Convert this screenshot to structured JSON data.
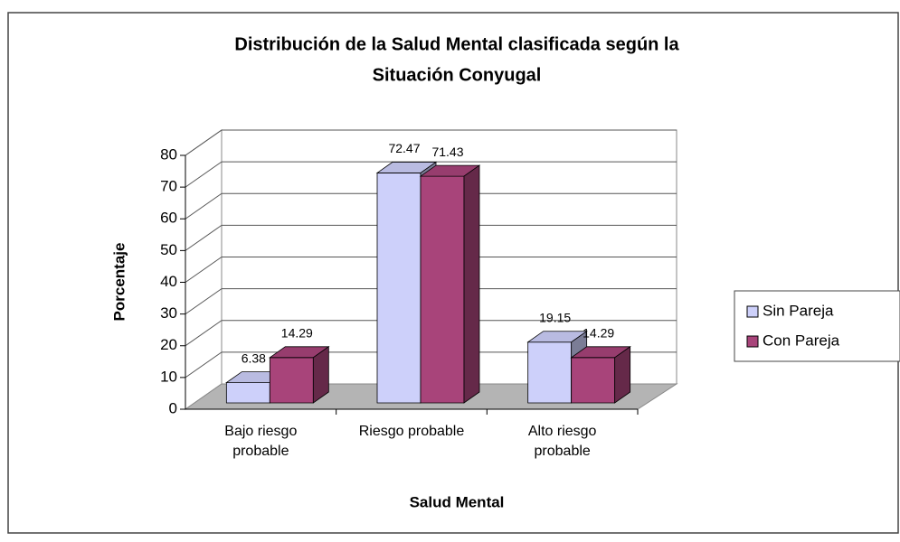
{
  "chart_data": {
    "type": "bar3d",
    "title": [
      "Distribución de la Salud Mental clasificada según la",
      "Situación Conyugal"
    ],
    "x_label": "Salud Mental",
    "y_label": "Porcentaje",
    "categories": [
      "Bajo riesgo probable",
      "Riesgo probable",
      "Alto riesgo probable"
    ],
    "series": [
      {
        "name": "Sin Pareja",
        "color": "#cdd0fa",
        "values": [
          6.38,
          72.47,
          19.15
        ]
      },
      {
        "name": "Con Pareja",
        "color": "#a8447a",
        "values": [
          14.29,
          71.43,
          14.29
        ]
      }
    ],
    "ylim": [
      0,
      80
    ],
    "yticks": [
      0,
      10,
      20,
      30,
      40,
      50,
      60,
      70,
      80
    ],
    "grid": true,
    "legend": "right"
  }
}
